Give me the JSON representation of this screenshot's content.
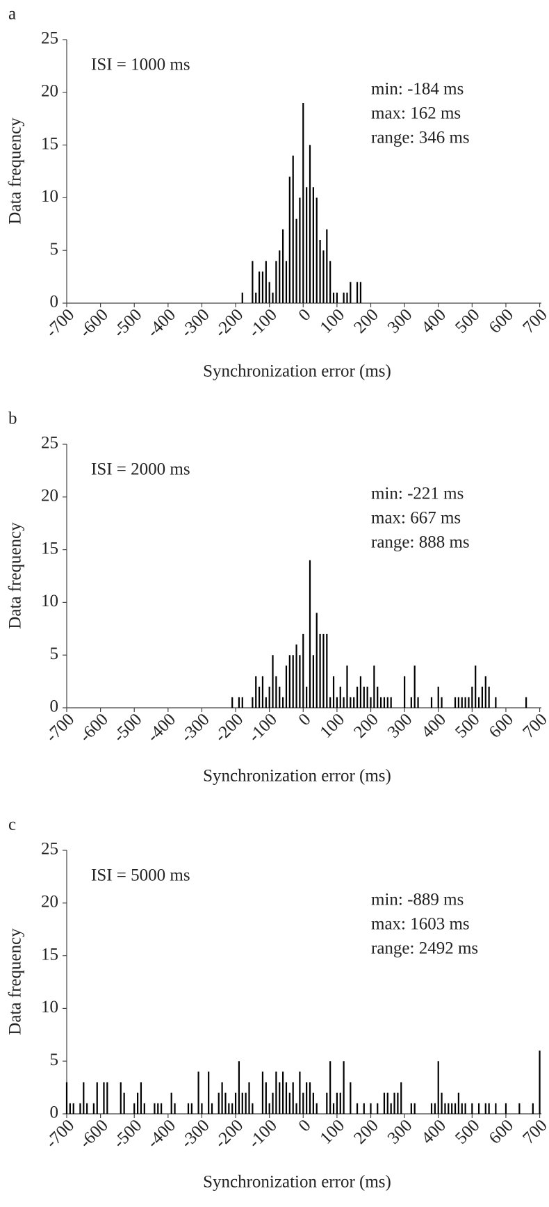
{
  "chart_data": [
    {
      "type": "bar",
      "label": "a",
      "xlabel": "Synchronization error (ms)",
      "ylabel": "Data frequency",
      "annotations": [
        "ISI = 1000 ms",
        "min: -184 ms",
        "max: 162 ms",
        "range: 346 ms"
      ],
      "color": "#000000",
      "x": [
        -180,
        -150,
        -140,
        -130,
        -120,
        -110,
        -100,
        -90,
        -80,
        -70,
        -60,
        -50,
        -40,
        -30,
        -20,
        -10,
        0,
        10,
        20,
        30,
        40,
        50,
        60,
        70,
        80,
        90,
        100,
        120,
        130,
        140,
        160,
        170
      ],
      "values": [
        1,
        4,
        1,
        3,
        3,
        4,
        2,
        1,
        4,
        5,
        7,
        4,
        12,
        14,
        8,
        10,
        19,
        11,
        15,
        11,
        10,
        6,
        5,
        7,
        4,
        1,
        1,
        1,
        1,
        2,
        2,
        2
      ],
      "xlim": [
        -700,
        705
      ],
      "ylim": [
        0,
        25
      ],
      "xticks": [
        -700,
        -600,
        -500,
        -400,
        -300,
        -200,
        -100,
        0,
        100,
        200,
        300,
        400,
        500,
        600,
        700
      ],
      "yticks": [
        0,
        5,
        10,
        15,
        20,
        25
      ]
    },
    {
      "type": "bar",
      "label": "b",
      "xlabel": "Synchronization error (ms)",
      "ylabel": "Data frequency",
      "annotations": [
        "ISI = 2000 ms",
        "min: -221 ms",
        "max: 667 ms",
        "range: 888 ms"
      ],
      "color": "#000000",
      "x": [
        -210,
        -190,
        -180,
        -150,
        -140,
        -130,
        -120,
        -110,
        -100,
        -90,
        -80,
        -70,
        -60,
        -50,
        -40,
        -30,
        -20,
        -10,
        0,
        10,
        20,
        30,
        40,
        50,
        60,
        70,
        80,
        90,
        100,
        110,
        120,
        130,
        140,
        150,
        160,
        170,
        180,
        190,
        200,
        210,
        220,
        230,
        240,
        250,
        260,
        300,
        320,
        330,
        340,
        380,
        400,
        410,
        450,
        460,
        470,
        480,
        490,
        500,
        510,
        520,
        530,
        540,
        550,
        570,
        660
      ],
      "values": [
        1,
        1,
        1,
        1,
        3,
        2,
        3,
        1,
        2,
        5,
        3,
        2,
        1,
        4,
        5,
        5,
        6,
        5,
        7,
        2,
        14,
        5,
        9,
        7,
        7,
        7,
        1,
        3,
        1,
        2,
        1,
        4,
        1,
        1,
        2,
        3,
        2,
        2,
        1,
        4,
        2,
        1,
        1,
        1,
        1,
        3,
        1,
        4,
        1,
        1,
        2,
        1,
        1,
        1,
        1,
        1,
        1,
        2,
        4,
        1,
        2,
        3,
        2,
        1,
        1
      ],
      "xlim": [
        -700,
        705
      ],
      "ylim": [
        0,
        25
      ],
      "xticks": [
        -700,
        -600,
        -500,
        -400,
        -300,
        -200,
        -100,
        0,
        100,
        200,
        300,
        400,
        500,
        600,
        700
      ],
      "yticks": [
        0,
        5,
        10,
        15,
        20,
        25
      ]
    },
    {
      "type": "bar",
      "label": "c",
      "xlabel": "Synchronization error (ms)",
      "ylabel": "Data frequency",
      "annotations": [
        "ISI = 5000 ms",
        "min: -889 ms",
        "max: 1603 ms",
        "range: 2492 ms"
      ],
      "color": "#000000",
      "x": [
        -700,
        -690,
        -680,
        -660,
        -650,
        -640,
        -620,
        -610,
        -590,
        -580,
        -540,
        -530,
        -500,
        -490,
        -480,
        -470,
        -440,
        -430,
        -420,
        -390,
        -380,
        -340,
        -330,
        -310,
        -300,
        -280,
        -270,
        -250,
        -240,
        -230,
        -220,
        -210,
        -200,
        -190,
        -180,
        -170,
        -160,
        -150,
        -120,
        -110,
        -100,
        -90,
        -80,
        -70,
        -60,
        -50,
        -40,
        -30,
        -20,
        -10,
        0,
        10,
        20,
        30,
        40,
        70,
        80,
        90,
        100,
        110,
        120,
        140,
        160,
        180,
        200,
        220,
        240,
        250,
        260,
        270,
        280,
        290,
        320,
        330,
        380,
        390,
        400,
        410,
        420,
        430,
        440,
        450,
        460,
        470,
        480,
        500,
        520,
        540,
        550,
        570,
        600,
        640,
        680,
        700
      ],
      "values": [
        3,
        1,
        1,
        1,
        3,
        1,
        1,
        3,
        3,
        3,
        3,
        2,
        1,
        2,
        3,
        1,
        1,
        1,
        1,
        2,
        1,
        1,
        1,
        4,
        1,
        4,
        1,
        2,
        3,
        2,
        1,
        1,
        2,
        5,
        2,
        2,
        3,
        1,
        4,
        3,
        1,
        2,
        4,
        3,
        4,
        3,
        2,
        3,
        1,
        4,
        2,
        3,
        3,
        2,
        1,
        2,
        5,
        1,
        2,
        2,
        5,
        3,
        1,
        1,
        1,
        1,
        2,
        2,
        1,
        2,
        2,
        3,
        1,
        1,
        1,
        1,
        5,
        2,
        1,
        1,
        1,
        1,
        2,
        1,
        1,
        1,
        1,
        1,
        1,
        1,
        1,
        1,
        1,
        6
      ],
      "xlim": [
        -700,
        705
      ],
      "ylim": [
        0,
        25
      ],
      "xticks": [
        -700,
        -600,
        -500,
        -400,
        -300,
        -200,
        -100,
        0,
        100,
        200,
        300,
        400,
        500,
        600,
        700
      ],
      "yticks": [
        0,
        5,
        10,
        15,
        20,
        25
      ]
    }
  ]
}
